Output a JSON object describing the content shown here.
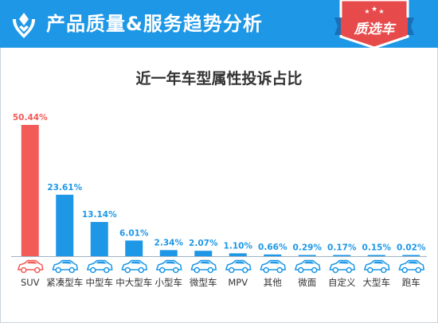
{
  "header": {
    "title": "产品质量&服务趋势分析",
    "badge_label": "质选车",
    "colors": {
      "bar": "#1d97e6",
      "badge": "#e74a4a"
    },
    "logo_icon": "logo-icon"
  },
  "chart_data": {
    "type": "bar",
    "title": "近一年车型属性投诉占比",
    "categories": [
      "SUV",
      "紧凑型车",
      "中型车",
      "中大型车",
      "小型车",
      "微型车",
      "MPV",
      "其他",
      "微面",
      "自定义",
      "大型车",
      "跑车"
    ],
    "values": [
      50.44,
      23.61,
      13.14,
      6.01,
      2.34,
      2.07,
      1.1,
      0.66,
      0.29,
      0.17,
      0.15,
      0.02
    ],
    "value_labels": [
      "50.44%",
      "23.61%",
      "13.14%",
      "6.01%",
      "2.34%",
      "2.07%",
      "1.10%",
      "0.66%",
      "0.29%",
      "0.17%",
      "0.15%",
      "0.02%"
    ],
    "colors": [
      "#f35b58",
      "#1d97e6",
      "#1d97e6",
      "#1d97e6",
      "#1d97e6",
      "#1d97e6",
      "#1d97e6",
      "#1d97e6",
      "#1d97e6",
      "#1d97e6",
      "#1d97e6",
      "#1d97e6"
    ],
    "label_colors": [
      "#f35b58",
      "#1d97e6",
      "#1d97e6",
      "#1d97e6",
      "#1d97e6",
      "#1d97e6",
      "#1d97e6",
      "#1d97e6",
      "#1d97e6",
      "#1d97e6",
      "#1d97e6",
      "#1d97e6"
    ],
    "icon_colors": [
      "#f35b58",
      "#1d97e6",
      "#1d97e6",
      "#1d97e6",
      "#1d97e6",
      "#1d97e6",
      "#1d97e6",
      "#1d97e6",
      "#1d97e6",
      "#1d97e6",
      "#1d97e6",
      "#1d97e6"
    ],
    "ylim": [
      0,
      50.44
    ],
    "grid": false,
    "legend": "none"
  }
}
